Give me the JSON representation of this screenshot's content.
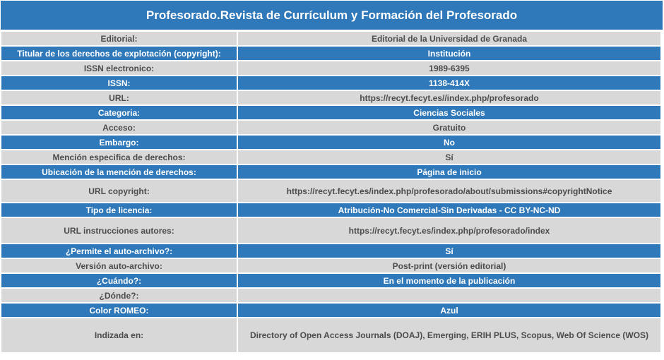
{
  "title": "Profesorado.Revista de Currículum y Formación del Profesorado",
  "rows": [
    {
      "label": "Editorial:",
      "value": "Editorial de la Universidad de Granada"
    },
    {
      "label": "Titular de los derechos de explotación (copyright):",
      "value": "Institución"
    },
    {
      "label": "ISSN electronico:",
      "value": "1989-6395"
    },
    {
      "label": "ISSN:",
      "value": "1138-414X"
    },
    {
      "label": "URL:",
      "value": "https://recyt.fecyt.es//index.php/profesorado"
    },
    {
      "label": "Categoria:",
      "value": "Ciencias Sociales"
    },
    {
      "label": "Acceso:",
      "value": "Gratuito"
    },
    {
      "label": "Embargo:",
      "value": "No"
    },
    {
      "label": "Mención especifica de derechos:",
      "value": "Sí"
    },
    {
      "label": "Ubicación de la mención de derechos:",
      "value": "Página de inicio"
    },
    {
      "label": "URL copyright:",
      "value": "https://recyt.fecyt.es/index.php/profesorado/about/submissions#copyrightNotice"
    },
    {
      "label": "Tipo de licencia:",
      "value": "Atribución-No Comercial-Sin Derivadas - CC BY-NC-ND"
    },
    {
      "label": "URL instrucciones autores:",
      "value": "https://recyt.fecyt.es/index.php/profesorado/index"
    },
    {
      "label": "¿Permite el auto-archivo?:",
      "value": "Sí"
    },
    {
      "label": "Versión auto-archivo:",
      "value": "Post-print (versión editorial)"
    },
    {
      "label": "¿Cuándo?:",
      "value": "En el momento de la publicación"
    },
    {
      "label": "¿Dónde?:",
      "value": ""
    },
    {
      "label": "Color ROMEO:",
      "value": "Azul"
    },
    {
      "label": "Indizada en:",
      "value": "Directory of Open Access Journals (DOAJ), Emerging, ERIH PLUS, Scopus, Web Of Science (WOS)"
    }
  ],
  "colors": {
    "header_blue": "#2f78b9",
    "row_gray": "#d8d8d8",
    "text_gray": "#4c4c4c"
  }
}
